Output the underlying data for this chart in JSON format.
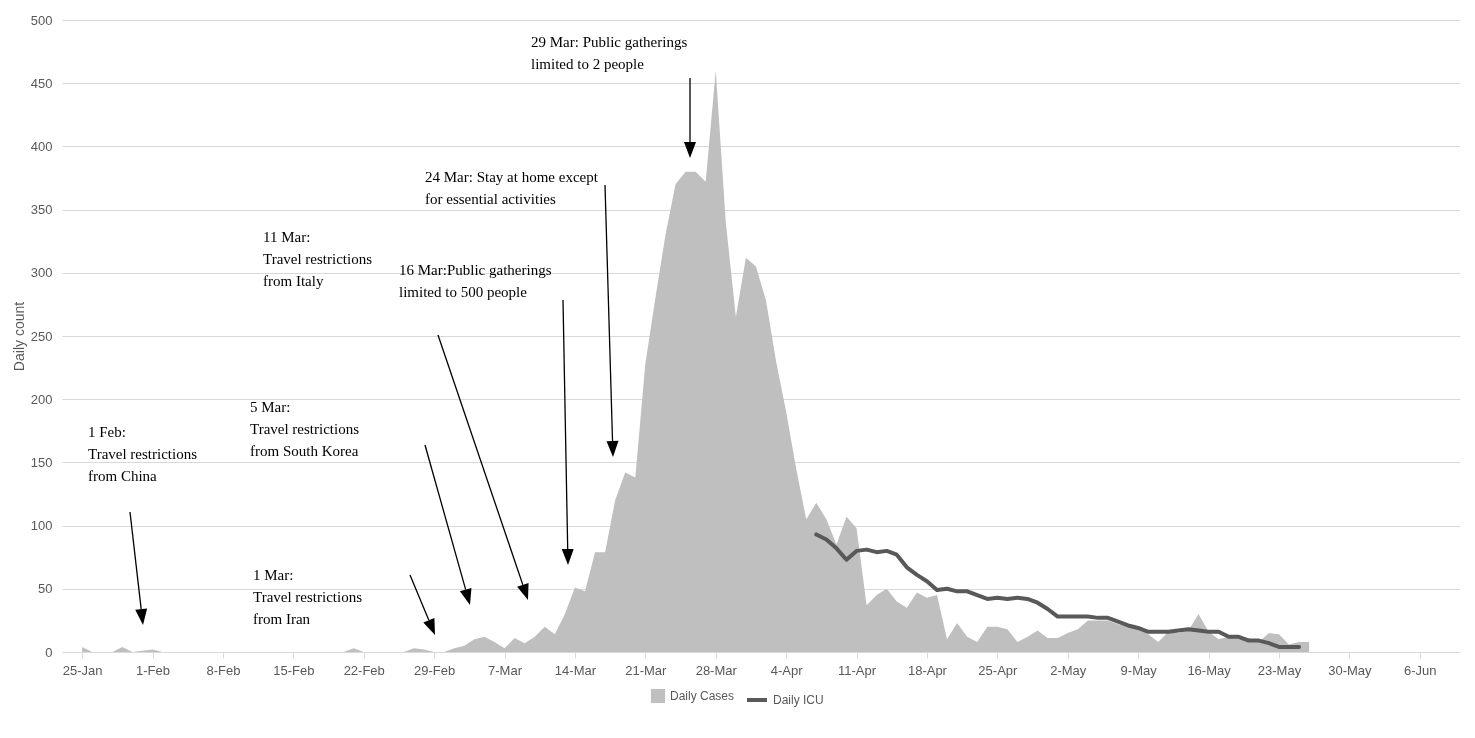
{
  "chart_data": {
    "type": "area",
    "ylabel": "Daily count",
    "xlim": [
      "--01-23",
      "--06-10"
    ],
    "ylim": [
      0,
      500
    ],
    "yticks": [
      0,
      50,
      100,
      150,
      200,
      250,
      300,
      350,
      400,
      450,
      500
    ],
    "xticks": [
      {
        "value": "--01-25",
        "label": "25-Jan"
      },
      {
        "value": "--02-01",
        "label": "1-Feb"
      },
      {
        "value": "--02-08",
        "label": "8-Feb"
      },
      {
        "value": "--02-15",
        "label": "15-Feb"
      },
      {
        "value": "--02-22",
        "label": "22-Feb"
      },
      {
        "value": "--02-29",
        "label": "29-Feb"
      },
      {
        "value": "--03-07",
        "label": "7-Mar"
      },
      {
        "value": "--03-14",
        "label": "14-Mar"
      },
      {
        "value": "--03-21",
        "label": "21-Mar"
      },
      {
        "value": "--03-28",
        "label": "28-Mar"
      },
      {
        "value": "--04-04",
        "label": "4-Apr"
      },
      {
        "value": "--04-11",
        "label": "11-Apr"
      },
      {
        "value": "--04-18",
        "label": "18-Apr"
      },
      {
        "value": "--04-25",
        "label": "25-Apr"
      },
      {
        "value": "--05-02",
        "label": "2-May"
      },
      {
        "value": "--05-09",
        "label": "9-May"
      },
      {
        "value": "--05-16",
        "label": "16-May"
      },
      {
        "value": "--05-23",
        "label": "23-May"
      },
      {
        "value": "--05-30",
        "label": "30-May"
      },
      {
        "value": "--06-06",
        "label": "6-Jun"
      }
    ],
    "grid": "y",
    "legend": "bottom",
    "series": [
      {
        "name": "Daily Cases",
        "color": "#bfbfbf",
        "x": [
          "--01-25",
          "--01-26",
          "--01-28",
          "--01-29",
          "--01-30",
          "--02-01",
          "--02-02",
          "--02-20",
          "--02-21",
          "--02-22",
          "--02-26",
          "--02-27",
          "--02-28",
          "--02-29",
          "--03-01",
          "--03-02",
          "--03-03",
          "--03-04",
          "--03-05",
          "--03-06",
          "--03-07",
          "--03-08",
          "--03-09",
          "--03-10",
          "--03-11",
          "--03-12",
          "--03-13",
          "--03-14",
          "--03-15",
          "--03-16",
          "--03-17",
          "--03-18",
          "--03-19",
          "--03-20",
          "--03-21",
          "--03-22",
          "--03-23",
          "--03-24",
          "--03-25",
          "--03-26",
          "--03-27",
          "--03-28",
          "--03-29",
          "--03-30",
          "--03-31",
          "--04-01",
          "--04-02",
          "--04-03",
          "--04-04",
          "--04-05",
          "--04-06",
          "--04-07",
          "--04-08",
          "--04-09",
          "--04-10",
          "--04-11",
          "--04-12",
          "--04-13",
          "--04-14",
          "--04-15",
          "--04-16",
          "--04-17",
          "--04-18",
          "--04-19",
          "--04-20",
          "--04-21",
          "--04-22",
          "--04-23",
          "--04-24",
          "--04-25",
          "--04-26",
          "--04-27",
          "--04-28",
          "--04-29",
          "--04-30",
          "--05-01",
          "--05-02",
          "--05-03",
          "--05-04",
          "--05-05",
          "--05-06",
          "--05-07",
          "--05-08",
          "--05-09",
          "--05-10",
          "--05-11",
          "--05-12",
          "--05-13",
          "--05-14",
          "--05-15",
          "--05-16",
          "--05-17",
          "--05-18",
          "--05-19",
          "--05-20",
          "--05-21",
          "--05-22",
          "--05-23",
          "--05-24",
          "--05-25",
          "--05-26"
        ],
        "values": [
          4,
          0,
          0,
          4,
          0,
          2,
          0,
          0,
          3,
          0,
          0,
          3,
          2,
          0,
          0,
          3,
          5,
          10,
          12,
          8,
          3,
          11,
          7,
          12,
          20,
          14,
          30,
          51,
          48,
          79,
          79,
          120,
          142,
          138,
          228,
          280,
          330,
          370,
          380,
          380,
          372,
          460,
          340,
          265,
          312,
          305,
          278,
          230,
          190,
          145,
          105,
          118,
          105,
          85,
          107,
          98,
          37,
          45,
          50,
          40,
          35,
          47,
          43,
          45,
          10,
          23,
          12,
          8,
          20,
          20,
          18,
          8,
          12,
          17,
          11,
          11,
          15,
          18,
          25,
          25,
          25,
          22,
          20,
          18,
          14,
          8,
          16,
          15,
          17,
          30,
          16,
          10,
          12,
          12,
          11,
          8,
          15,
          14,
          6,
          8,
          8
        ]
      },
      {
        "name": "Daily ICU",
        "type": "line",
        "color": "#595959",
        "x": [
          "--04-07",
          "--04-08",
          "--04-09",
          "--04-10",
          "--04-11",
          "--04-12",
          "--04-13",
          "--04-14",
          "--04-15",
          "--04-16",
          "--04-17",
          "--04-18",
          "--04-19",
          "--04-20",
          "--04-21",
          "--04-22",
          "--04-23",
          "--04-24",
          "--04-25",
          "--04-26",
          "--04-27",
          "--04-28",
          "--04-29",
          "--04-30",
          "--05-01",
          "--05-02",
          "--05-03",
          "--05-04",
          "--05-05",
          "--05-06",
          "--05-07",
          "--05-08",
          "--05-09",
          "--05-10",
          "--05-11",
          "--05-12",
          "--05-13",
          "--05-14",
          "--05-15",
          "--05-16",
          "--05-17",
          "--05-18",
          "--05-19",
          "--05-20",
          "--05-21",
          "--05-22",
          "--05-23",
          "--05-24",
          "--05-25"
        ],
        "values": [
          93,
          89,
          82,
          73,
          80,
          81,
          79,
          80,
          77,
          67,
          61,
          56,
          49,
          50,
          48,
          48,
          45,
          42,
          43,
          42,
          43,
          42,
          39,
          34,
          28,
          28,
          28,
          28,
          27,
          27,
          24,
          21,
          19,
          16,
          16,
          16,
          17,
          18,
          17,
          16,
          16,
          12,
          12,
          9,
          9,
          7,
          4,
          4,
          4
        ]
      }
    ],
    "annotations": [
      "1 Feb:\nTravel restrictions\nfrom China",
      "1 Mar:\nTravel restrictions\nfrom Iran",
      "5 Mar:\nTravel restrictions\nfrom South Korea",
      "11 Mar:\nTravel restrictions\nfrom Italy",
      "16 Mar:Public gatherings\n limited to 500 people",
      "24 Mar: Stay at home except\n for essential activities",
      "29 Mar: Public gatherings\nlimited to 2 people"
    ]
  }
}
